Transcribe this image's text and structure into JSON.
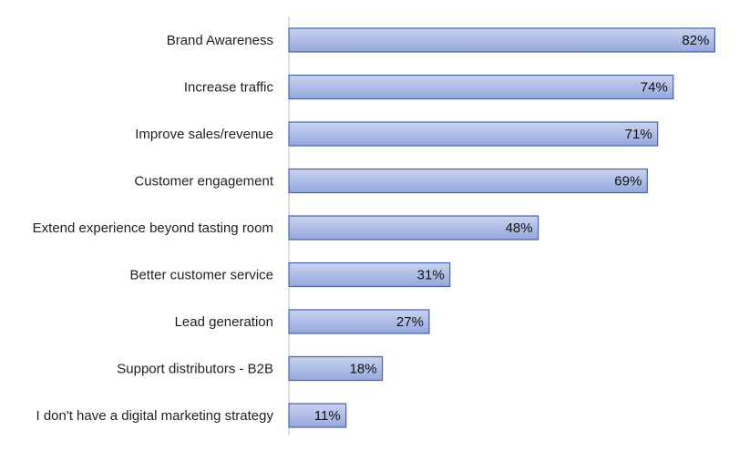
{
  "chart_data": {
    "type": "bar",
    "orientation": "horizontal",
    "title": "",
    "xlabel": "",
    "ylabel": "",
    "categories": [
      "Brand Awareness",
      "Increase traffic",
      "Improve sales/revenue",
      "Customer engagement",
      "Extend experience beyond tasting room",
      "Better customer service",
      "Lead generation",
      "Support distributors - B2B",
      "I don't have a digital marketing strategy"
    ],
    "values": [
      82,
      74,
      71,
      69,
      48,
      31,
      27,
      18,
      11
    ],
    "value_labels": [
      "82%",
      "74%",
      "71%",
      "69%",
      "48%",
      "31%",
      "27%",
      "18%",
      "11%"
    ],
    "xlim": [
      0,
      85
    ],
    "grid": false,
    "legend": "none",
    "colors": {
      "bar_fill_top": "#c9d3f0",
      "bar_fill_bottom": "#95a8dc",
      "bar_stroke": "#4a63a8",
      "axis": "#bfbfbf"
    }
  }
}
